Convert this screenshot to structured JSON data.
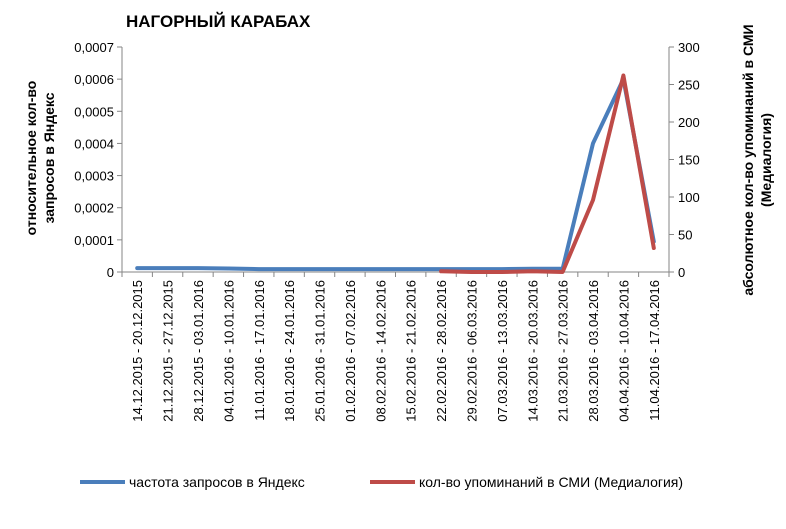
{
  "chart_data": {
    "type": "line",
    "title": "НАГОРНЫЙ КАРАБАХ",
    "ylabel_left": [
      "относительное кол-во",
      "запросов в Яндекс"
    ],
    "ylabel_right": [
      "абсолютное кол-во упоминаний в СМИ",
      "(Медиалогия)"
    ],
    "categories": [
      "14.12.2015 - 20.12.2015",
      "21.12.2015 - 27.12.2015",
      "28.12.2015 - 03.01.2016",
      "04.01.2016 - 10.01.2016",
      "11.01.2016 - 17.01.2016",
      "18.01.2016 - 24.01.2016",
      "25.01.2016 - 31.01.2016",
      "01.02.2016 - 07.02.2016",
      "08.02.2016 - 14.02.2016",
      "15.02.2016 - 21.02.2016",
      "22.02.2016 - 28.02.2016",
      "29.02.2016 - 06.03.2016",
      "07.03.2016 - 13.03.2016",
      "14.03.2016 - 20.03.2016",
      "21.03.2016 - 27.03.2016",
      "28.03.2016 - 03.04.2016",
      "04.04.2016 - 10.04.2016",
      "11.04.2016 - 17.04.2016"
    ],
    "left_axis": {
      "ylim": [
        0,
        0.0007
      ],
      "ticks": [
        "0",
        "0,0001",
        "0,0002",
        "0,0003",
        "0,0004",
        "0,0005",
        "0,0006",
        "0,0007"
      ]
    },
    "right_axis": {
      "ylim": [
        0,
        300
      ],
      "ticks": [
        "0",
        "50",
        "100",
        "150",
        "200",
        "250",
        "300"
      ]
    },
    "series": [
      {
        "name": "частота запросов в Яндекс",
        "axis": "left",
        "color": "#4a7ebb",
        "values": [
          1.2e-05,
          1.2e-05,
          1.2e-05,
          1.1e-05,
          9e-06,
          9e-06,
          9e-06,
          9e-06,
          9e-06,
          9e-06,
          9e-06,
          9e-06,
          9e-06,
          1e-05,
          1e-05,
          0.0004,
          0.0006,
          9.5e-05
        ]
      },
      {
        "name": "кол-во упоминаний в СМИ (Медиалогия)",
        "axis": "right",
        "color": "#be4b48",
        "values": [
          null,
          null,
          null,
          null,
          null,
          null,
          null,
          null,
          null,
          null,
          1,
          0,
          0,
          1,
          0,
          96,
          262,
          32
        ]
      }
    ],
    "grid": false,
    "legend": "bottom"
  }
}
